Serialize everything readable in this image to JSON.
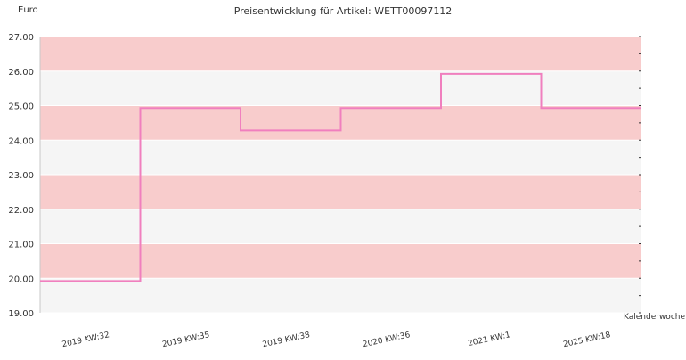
{
  "chart_data": {
    "type": "line",
    "title": "Preisentwicklung für Artikel: WETT00097112",
    "ylabel": "Euro",
    "xlabel": "Kalenderwoche",
    "ylim": [
      19.0,
      27.0
    ],
    "y_ticks": [
      "19.00",
      "20.00",
      "21.00",
      "22.00",
      "23.00",
      "24.00",
      "25.00",
      "26.00",
      "27.00"
    ],
    "categories": [
      "2019 KW:32",
      "2019 KW:35",
      "2019 KW:38",
      "2020 KW:36",
      "2021 KW:1",
      "2025 KW:18"
    ],
    "step": "post",
    "series": [
      {
        "values": [
          19.92,
          24.93,
          24.28,
          24.93,
          25.92,
          24.93
        ],
        "color": "#f07fbe"
      }
    ],
    "bands": {
      "shaded": "#f8cccc",
      "light": "#f5f5f5"
    },
    "grid": true
  }
}
